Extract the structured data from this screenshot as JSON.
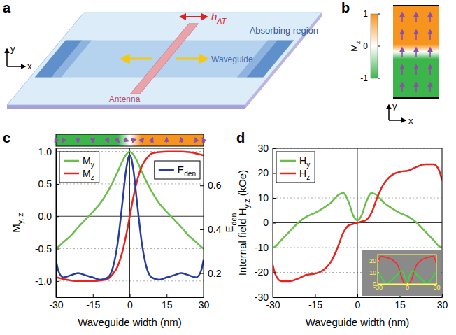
{
  "diagram": {
    "a": {
      "panel_label": "a",
      "field_label": "hAT",
      "absorbing_label": "Absorbing region",
      "waveguide_label": "Waveguide",
      "antenna_label": "Antenna",
      "axis_labels": {
        "y": "y",
        "x": "x"
      }
    },
    "b": {
      "panel_label": "b",
      "colorbar": {
        "label": "Mz",
        "range": [
          -1,
          1
        ],
        "ticks": [
          1,
          0,
          -1
        ],
        "colors": [
          "#3cb54a",
          "#ffffff",
          "#f7941d"
        ]
      },
      "axis_labels": {
        "y": "y",
        "x": "x"
      }
    }
  },
  "chart_data": [
    {
      "panel_label": "c",
      "type": "line",
      "x_label": "Waveguide width (nm)",
      "y_label": "My, z",
      "y2_label": "Eden",
      "x": [
        -30,
        -29,
        -27,
        -24,
        -21,
        -18,
        -15,
        -12,
        -9,
        -7,
        -5,
        -3,
        -1.5,
        0,
        1.5,
        3,
        5,
        7,
        9,
        12,
        15,
        18,
        21,
        24,
        27,
        29,
        30
      ],
      "xlim": [
        -30,
        30
      ],
      "xticks": [
        -30,
        -15,
        0,
        15,
        30
      ],
      "ylim": [
        -1.25,
        1.05
      ],
      "yticks": [
        {
          "value": -1,
          "label": "-1.0"
        },
        -0.5,
        {
          "value": 0,
          "label": "0.0"
        },
        0.5,
        {
          "value": 1,
          "label": "1.0"
        }
      ],
      "y2lim": [
        0.09,
        0.77
      ],
      "y2ticks": [
        0.2,
        0.4,
        0.6
      ],
      "grid": true,
      "legend": "top",
      "series": [
        {
          "name": "My",
          "color": "#6abf4b",
          "values": [
            -0.5,
            -0.47,
            -0.4,
            -0.3,
            -0.17,
            -0.05,
            0.07,
            0.2,
            0.38,
            0.52,
            0.68,
            0.85,
            0.95,
            1.0,
            0.95,
            0.85,
            0.68,
            0.52,
            0.38,
            0.2,
            0.07,
            -0.05,
            -0.17,
            -0.3,
            -0.4,
            -0.47,
            -0.5
          ]
        },
        {
          "name": "Mz",
          "color": "#e8231d",
          "values": [
            -0.94,
            -0.95,
            -0.97,
            -0.99,
            -1.0,
            -1.0,
            -1.0,
            -0.99,
            -0.97,
            -0.9,
            -0.78,
            -0.55,
            -0.3,
            0,
            0.3,
            0.55,
            0.78,
            0.9,
            0.97,
            0.99,
            1.0,
            1.0,
            1.0,
            0.99,
            0.97,
            0.95,
            0.94
          ]
        },
        {
          "name": "Eden",
          "color": "#263c9e",
          "axis": "y2",
          "values": [
            0.26,
            0.21,
            0.18,
            0.19,
            0.2,
            0.19,
            0.18,
            0.17,
            0.18,
            0.22,
            0.33,
            0.52,
            0.67,
            0.74,
            0.67,
            0.52,
            0.33,
            0.22,
            0.18,
            0.17,
            0.18,
            0.19,
            0.2,
            0.19,
            0.18,
            0.21,
            0.26
          ]
        }
      ]
    },
    {
      "panel_label": "d",
      "type": "line",
      "x_label": "Waveguide width (nm)",
      "y_label": "Internal field Hy,z (kOe)",
      "x": [
        -30,
        -29,
        -27,
        -24,
        -21,
        -18,
        -15,
        -12,
        -9,
        -7,
        -5,
        -3,
        -1.5,
        0,
        1.5,
        3,
        5,
        7,
        9,
        12,
        15,
        18,
        21,
        24,
        27,
        29,
        30
      ],
      "xlim": [
        -30,
        30
      ],
      "xticks": [
        -30,
        -15,
        0,
        15,
        30
      ],
      "ylim": [
        -30,
        30
      ],
      "yticks": [
        -30,
        -20,
        -10,
        0,
        10,
        20,
        30
      ],
      "grid": true,
      "legend": "upper left",
      "series": [
        {
          "name": "Hy",
          "color": "#6abf4b",
          "values": [
            -10,
            -9.5,
            -7,
            -3.5,
            0,
            2.5,
            4,
            6,
            8.5,
            11,
            12,
            8,
            3,
            1,
            3,
            8,
            12,
            11,
            8.5,
            6,
            4,
            2.5,
            0,
            -3.5,
            -7,
            -9.5,
            -10
          ]
        },
        {
          "name": "Hz",
          "color": "#e8231d",
          "values": [
            -17,
            -21,
            -23.5,
            -23.5,
            -22.5,
            -21,
            -20.5,
            -19,
            -15,
            -10,
            -4,
            -1,
            -0.5,
            0,
            0.5,
            1,
            4,
            10,
            15,
            19,
            20.5,
            21,
            22.5,
            23.5,
            23.5,
            21,
            17
          ]
        }
      ]
    },
    {
      "type": "line",
      "x": [
        -30,
        -27,
        -21,
        -15,
        -9,
        -6,
        -3,
        0,
        3,
        6,
        9,
        15,
        21,
        27,
        30
      ],
      "xlim": [
        -30,
        30
      ],
      "xticks": [
        -30,
        0,
        30
      ],
      "ylim": [
        0,
        25
      ],
      "yticks": [
        0,
        10,
        20
      ],
      "series": [
        {
          "color": "#ff2a2a",
          "values": [
            17,
            23.5,
            22.5,
            20.5,
            15,
            7,
            1,
            0,
            1,
            7,
            15,
            20.5,
            22.5,
            23.5,
            17
          ]
        },
        {
          "color": "#33dd33",
          "values": [
            10,
            7,
            0,
            4,
            8.5,
            11.5,
            8,
            1,
            8,
            11.5,
            8.5,
            4,
            0,
            7,
            10
          ]
        }
      ]
    }
  ]
}
